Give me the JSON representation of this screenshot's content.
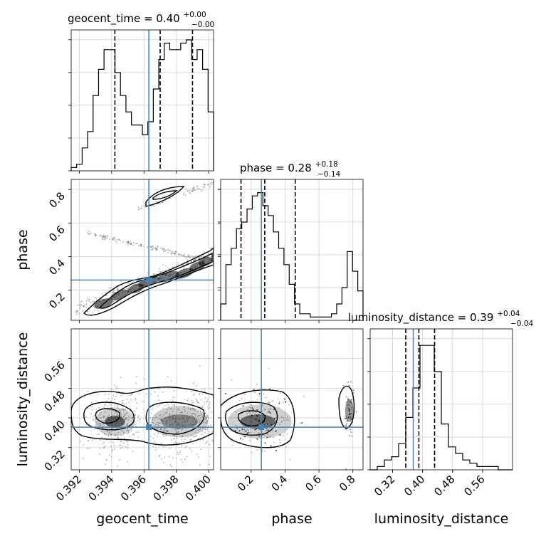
{
  "chart_data": {
    "type": "corner",
    "parameters": [
      {
        "name": "geocent_time",
        "title": "geocent_time = 0.40",
        "title_sup": "+0.00",
        "title_sub": "−0.00",
        "axis_label": "geocent_time",
        "range": [
          0.3915,
          0.4003
        ],
        "ticks": [
          "0.392",
          "0.394",
          "0.396",
          "0.398",
          "0.400"
        ],
        "truth": 0.3963,
        "quantiles": [
          0.3942,
          0.397,
          0.399
        ],
        "hist_max": 40,
        "hist": [
          1,
          2,
          7,
          12,
          23,
          31,
          37,
          37,
          30,
          23,
          18,
          14,
          14,
          11,
          15,
          25,
          34,
          39,
          37,
          37,
          39,
          40,
          34,
          37,
          31,
          18
        ]
      },
      {
        "name": "phase",
        "title": "phase = 0.28",
        "title_sup": "+0.18",
        "title_sub": "−0.14",
        "axis_label": "phase",
        "range": [
          0.02,
          0.86
        ],
        "ticks": [
          "0.2",
          "0.4",
          "0.6",
          "0.8"
        ],
        "truth": 0.26,
        "quantiles": [
          0.14,
          0.28,
          0.46
        ],
        "hist_max": 40,
        "hist": [
          5,
          17,
          22,
          28,
          30,
          34,
          38,
          39,
          35,
          32,
          27,
          22,
          17,
          11,
          5,
          2,
          2,
          1,
          1,
          1,
          1,
          2,
          5,
          10,
          21,
          15,
          9
        ]
      },
      {
        "name": "luminosity_distance",
        "title": "luminosity_distance = 0.39",
        "title_sup": "+0.04",
        "title_sub": "−0.04",
        "axis_label": "luminosity_distance",
        "range": [
          0.26,
          0.64
        ],
        "ticks": [
          "0.32",
          "0.40",
          "0.48",
          "0.56"
        ],
        "truth": 0.375,
        "quantiles": [
          0.355,
          0.39,
          0.432
        ],
        "hist_max": 40,
        "hist": [
          0,
          1,
          3,
          4,
          8,
          16,
          25,
          38,
          38,
          30,
          14,
          7,
          5,
          3,
          2,
          1,
          1,
          1,
          0,
          0
        ]
      }
    ],
    "contours": [
      {
        "x": "geocent_time",
        "y": "phase",
        "truth_marker": [
          0.3963,
          0.26
        ]
      },
      {
        "x": "geocent_time",
        "y": "luminosity_distance",
        "truth_marker": [
          0.3963,
          0.375
        ]
      },
      {
        "x": "phase",
        "y": "luminosity_distance",
        "truth_marker": [
          0.26,
          0.375
        ]
      }
    ],
    "grid": true,
    "truth_color": "#4682b4",
    "hist_color": "#000000",
    "quantile_style": "dashed"
  }
}
